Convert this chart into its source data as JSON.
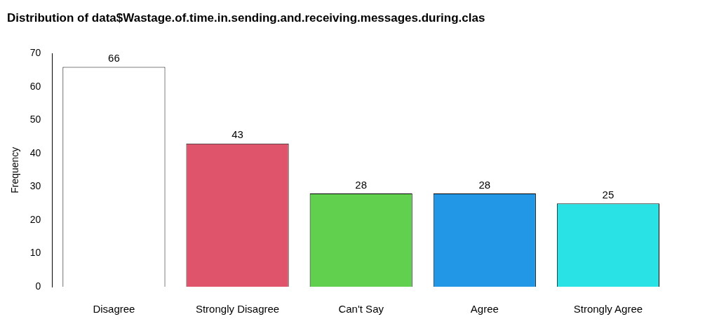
{
  "chart_data": {
    "type": "bar",
    "title": "Distribution of data$Wastage.of.time.in.sending.and.receiving.messages.during.clas",
    "ylabel": "Frequency",
    "categories": [
      "Disagree",
      "Strongly Disagree",
      "Can't Say",
      "Agree",
      "Strongly Agree"
    ],
    "values": [
      66,
      43,
      28,
      28,
      25
    ],
    "colors": [
      "#ffffff",
      "#df536b",
      "#61d04f",
      "#2297e6",
      "#28e2e5"
    ],
    "ylim": [
      0,
      70
    ],
    "yticks": [
      0,
      10,
      20,
      30,
      40,
      50,
      60,
      70
    ],
    "grid": false,
    "legend": false,
    "data_labels": true
  }
}
